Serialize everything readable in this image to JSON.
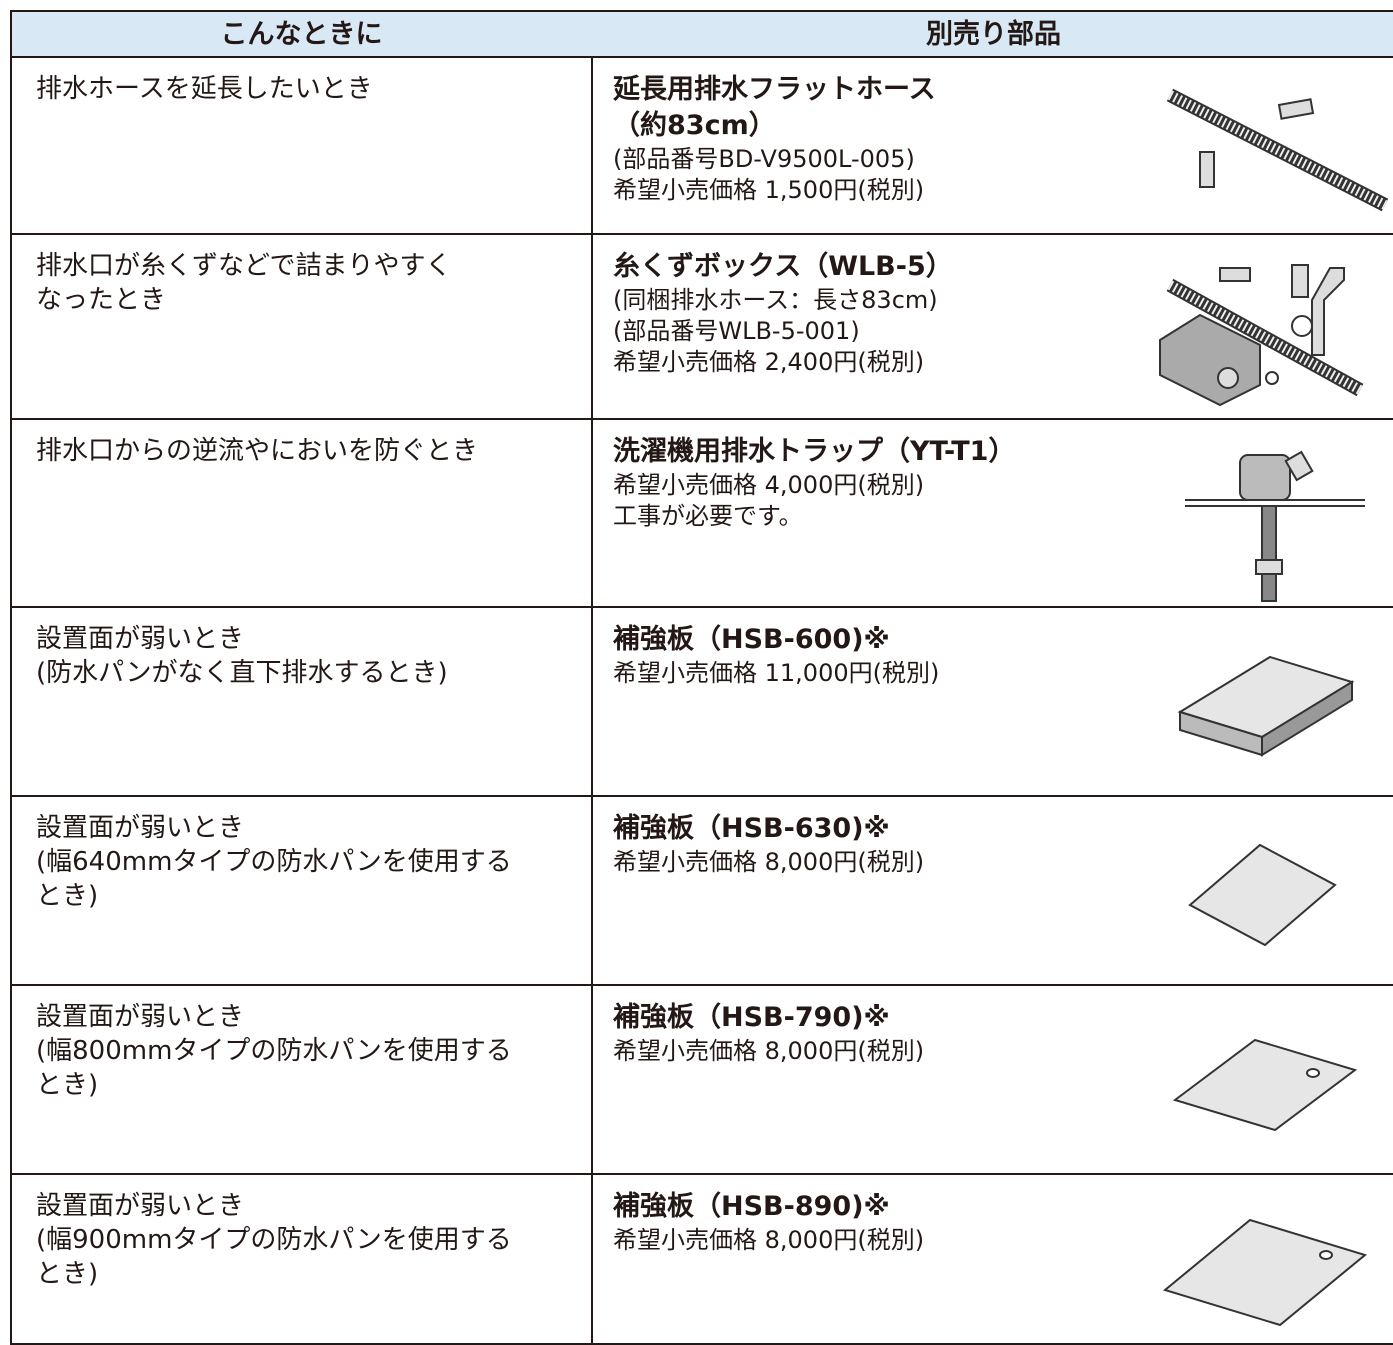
{
  "table": {
    "header": [
      "こんなときに",
      "別売り部品"
    ],
    "rows": [
      {
        "situation": [
          "排水ホースを延長したいとき"
        ],
        "part": [
          "延長用排水フラットホース",
          "（約83cm）"
        ],
        "details": [
          "(部品番号BD-V9500L-005)",
          "希望小売価格 1,500円(税別)"
        ]
      },
      {
        "situation": [
          "排水口が糸くずなどで詰まりやすく",
          "なったとき"
        ],
        "part": [
          "糸くずボックス（WLB-5）"
        ],
        "details": [
          "(同梱排水ホース：長さ83cm)",
          "(部品番号WLB-5-001)",
          "希望小売価格 2,400円(税別)"
        ]
      },
      {
        "situation": [
          "排水口からの逆流やにおいを防ぐとき"
        ],
        "part": [
          "洗濯機用排水トラップ（YT-T1）"
        ],
        "details": [
          "希望小売価格 4,000円(税別)",
          "工事が必要です。"
        ]
      },
      {
        "situation": [
          "設置面が弱いとき",
          "(防水パンがなく直下排水するとき)"
        ],
        "part": [
          "補強板（HSB-600)※"
        ],
        "details": [
          "希望小売価格 11,000円(税別)"
        ]
      },
      {
        "situation": [
          "設置面が弱いとき",
          "(幅640mmタイプの防水パンを使用する",
          "とき)"
        ],
        "part": [
          "補強板（HSB-630)※"
        ],
        "details": [
          "希望小売価格 8,000円(税別)"
        ]
      },
      {
        "situation": [
          "設置面が弱いとき",
          "(幅800mmタイプの防水パンを使用する",
          "とき)"
        ],
        "part": [
          "補強板（HSB-790)※"
        ],
        "details": [
          "希望小売価格 8,000円(税別)"
        ]
      },
      {
        "situation": [
          "設置面が弱いとき",
          "(幅900mmタイプの防水パンを使用する",
          "とき)"
        ],
        "part": [
          "補強板（HSB-890)※"
        ],
        "details": [
          "希望小売価格 8,000円(税別)"
        ]
      }
    ]
  }
}
